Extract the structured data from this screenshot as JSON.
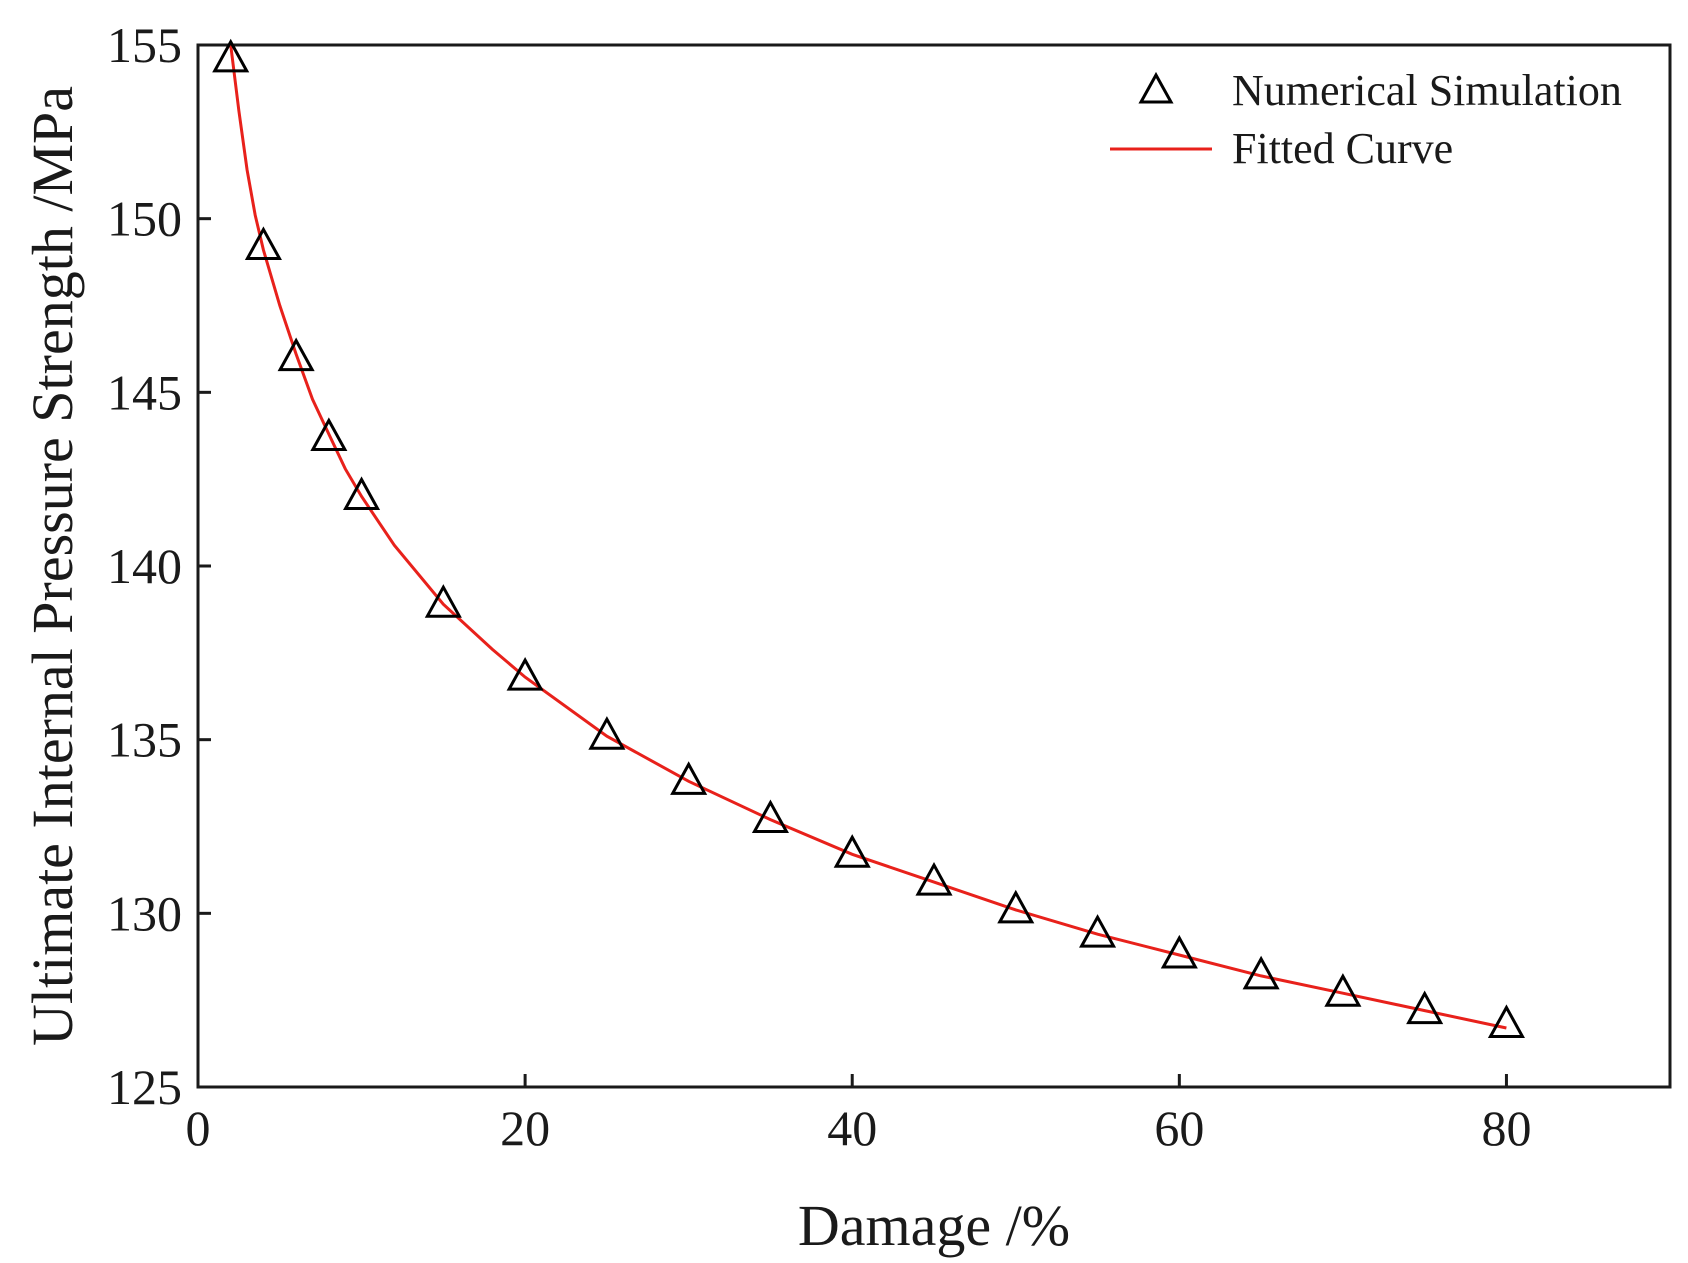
{
  "chart_data": {
    "type": "scatter",
    "title": "",
    "xlabel": "Damage /%",
    "ylabel": "Ultimate Internal Pressure Strength /MPa",
    "xlim": [
      0,
      90
    ],
    "ylim": [
      125,
      155
    ],
    "xticks": [
      0,
      20,
      40,
      60,
      80
    ],
    "yticks": [
      125,
      130,
      135,
      140,
      145,
      150,
      155
    ],
    "grid": false,
    "legend_position": "top-right",
    "series": [
      {
        "name": "Numerical Simulation",
        "kind": "scatter",
        "marker": "open-triangle",
        "color": "#000000",
        "x": [
          2,
          4,
          6,
          8,
          10,
          15,
          20,
          25,
          30,
          35,
          40,
          45,
          50,
          55,
          60,
          65,
          70,
          75,
          80
        ],
        "y": [
          154.6,
          149.2,
          146.0,
          143.7,
          142.0,
          138.9,
          136.8,
          135.1,
          133.8,
          132.7,
          131.7,
          130.9,
          130.1,
          129.4,
          128.8,
          128.2,
          127.7,
          127.2,
          126.8
        ]
      },
      {
        "name": "Fitted Curve",
        "kind": "line",
        "color": "#e8211b",
        "x": [
          2,
          2.5,
          3,
          3.5,
          4,
          5,
          6,
          7,
          8,
          9,
          10,
          12,
          15,
          18,
          20,
          25,
          30,
          35,
          40,
          45,
          50,
          55,
          60,
          65,
          70,
          75,
          80
        ],
        "y": [
          155.0,
          153.1,
          151.4,
          150.1,
          149.1,
          147.5,
          146.1,
          144.8,
          143.8,
          142.8,
          142.0,
          140.6,
          138.9,
          137.6,
          136.8,
          135.1,
          133.8,
          132.7,
          131.7,
          130.9,
          130.1,
          129.4,
          128.8,
          128.2,
          127.7,
          127.2,
          126.7
        ]
      }
    ]
  }
}
